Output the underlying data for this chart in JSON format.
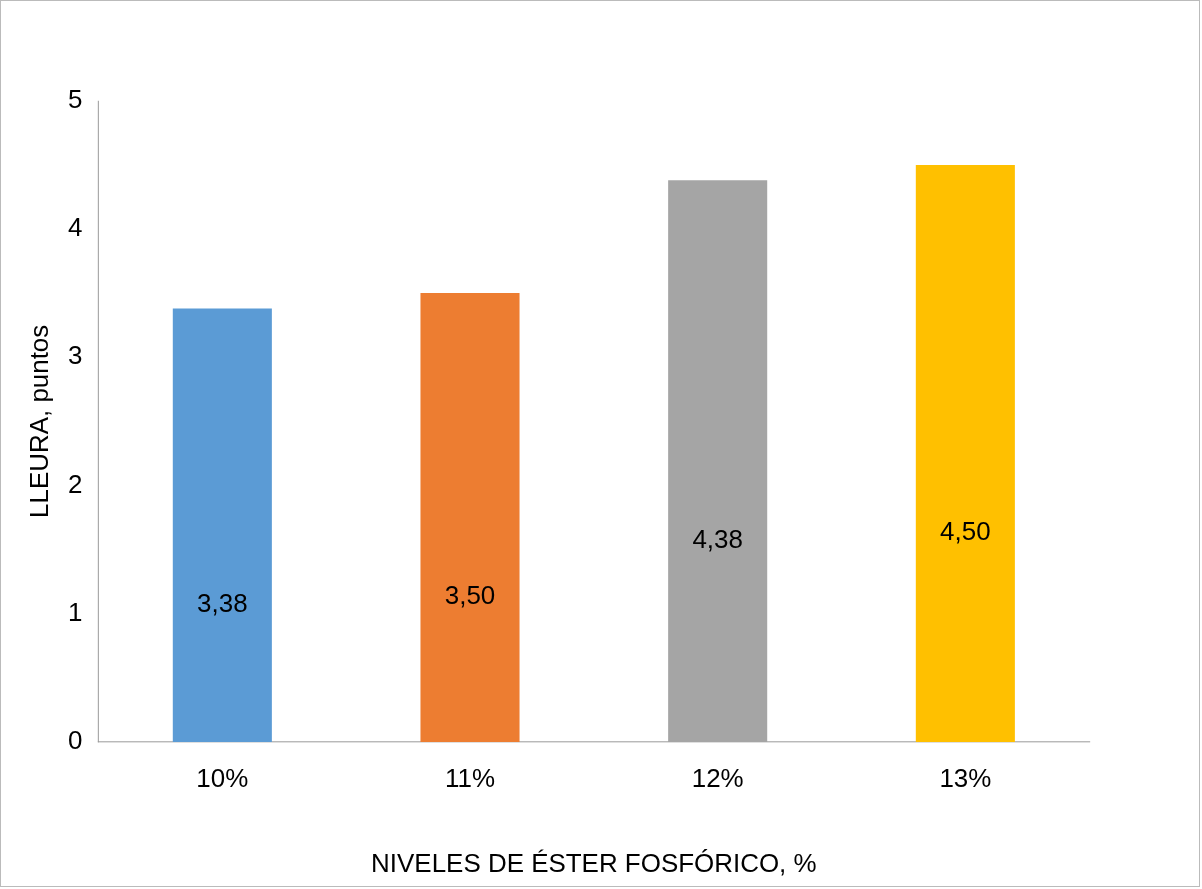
{
  "chart_data": {
    "type": "bar",
    "xlabel": "NIVELES DE ÉSTER FOSFÓRICO, %",
    "ylabel": "LLEURA, puntos",
    "categories": [
      "10%",
      "11%",
      "12%",
      "13%"
    ],
    "values": [
      3.38,
      3.5,
      4.38,
      4.5
    ],
    "colors": [
      "#5b9bd5",
      "#ed7d31",
      "#a5a5a5",
      "#ffc000"
    ],
    "value_labels": [
      "3,38",
      "3,50",
      "4,38",
      "4,50"
    ],
    "ylim": [
      0,
      5
    ],
    "yticks": [
      0,
      1,
      2,
      3,
      4,
      5
    ],
    "grid": false,
    "legend": false
  }
}
